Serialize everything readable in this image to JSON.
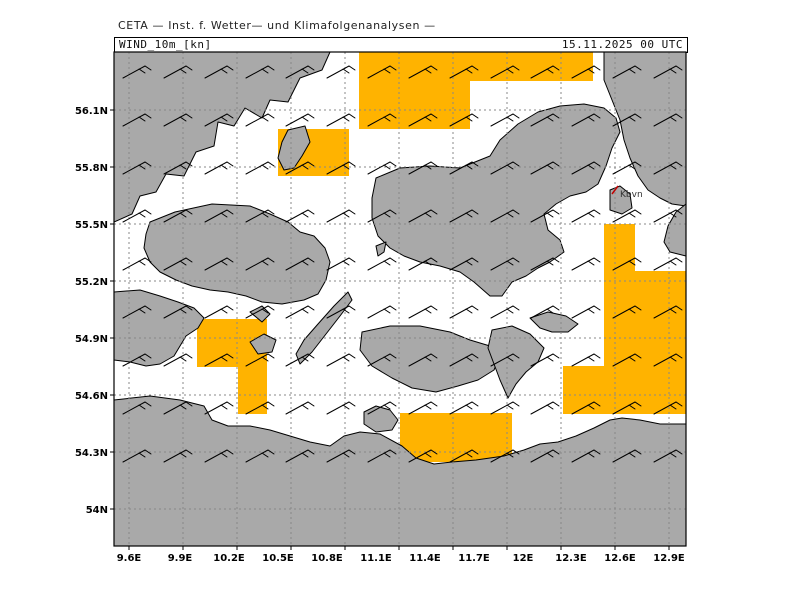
{
  "header": {
    "agency": "CETA — Inst. f. Wetter— und Klimafolgenanalysen —",
    "variable": "WIND_10m_[kn]",
    "datetime": "15.11.2025 00 UTC"
  },
  "map": {
    "city_label": "Kbvn",
    "colors": {
      "land": "#a9a9a9",
      "sea": "#ffffff",
      "highlight": "#ffb300",
      "grid": "#888888",
      "barb": "#000000"
    },
    "lat_labels": [
      "56.1N",
      "55.8N",
      "55.5N",
      "55.2N",
      "54.9N",
      "54.6N",
      "54.3N",
      "54N"
    ],
    "lon_labels": [
      "9.6E",
      "9.9E",
      "10.2E",
      "10.5E",
      "10.8E",
      "11.1E",
      "11.4E",
      "11.7E",
      "12E",
      "12.3E",
      "12.6E",
      "12.9E"
    ]
  }
}
